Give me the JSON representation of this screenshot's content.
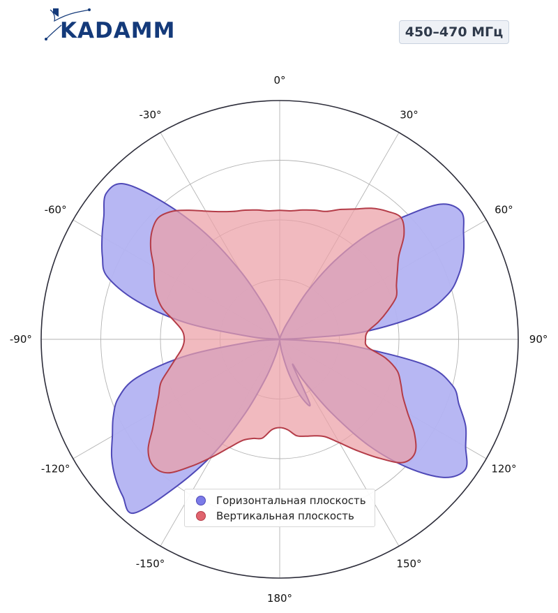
{
  "header": {
    "logo_text": "KADAMM",
    "frequency_label": "450–470 МГц"
  },
  "colors": {
    "horizontal_fill": "#b3b3f2",
    "horizontal_stroke": "#4f49b7",
    "vertical_fill": "#eba0a6",
    "vertical_stroke": "#b43c48",
    "legend_horizontal": "#7b7be8",
    "legend_vertical": "#e0646e",
    "logo": "#143a7a"
  },
  "chart_data": {
    "type": "polar",
    "angle_ticks": [
      0,
      30,
      60,
      90,
      120,
      150,
      180,
      -150,
      -120,
      -90,
      -60,
      -30
    ],
    "angle_tick_labels": [
      "0°",
      "30°",
      "60°",
      "90°",
      "120°",
      "150°",
      "180°",
      "-150°",
      "-120°",
      "-90°",
      "-60°",
      "-30°"
    ],
    "radial_grid": [
      0.25,
      0.5,
      0.75,
      1.0
    ],
    "radial_range": [
      0,
      1
    ],
    "grid": true,
    "legend_position": "bottom-center",
    "series": [
      {
        "name": "Горизонтальная плоскость",
        "color": "#7b7be8",
        "angles_deg": [
          0,
          5,
          10,
          15,
          20,
          25,
          30,
          35,
          40,
          45,
          50,
          55,
          60,
          65,
          70,
          75,
          80,
          85,
          87,
          90,
          93,
          95,
          100,
          105,
          110,
          115,
          120,
          125,
          130,
          135,
          140,
          145,
          150,
          153,
          155,
          160,
          165,
          170,
          175,
          180,
          185,
          190,
          195,
          200,
          205,
          210,
          215,
          220,
          225,
          230,
          235,
          240,
          245,
          250,
          255,
          260,
          265,
          270,
          275,
          280,
          285,
          290,
          295,
          300,
          305,
          310,
          315,
          320,
          325,
          330,
          335,
          340,
          345,
          350,
          355
        ],
        "values": [
          0.0,
          0.0,
          0.0,
          0.01,
          0.03,
          0.08,
          0.23,
          0.4,
          0.57,
          0.72,
          0.88,
          0.93,
          0.89,
          0.85,
          0.8,
          0.73,
          0.6,
          0.35,
          0.1,
          0.0,
          0.1,
          0.3,
          0.62,
          0.75,
          0.8,
          0.86,
          0.9,
          0.95,
          0.9,
          0.76,
          0.58,
          0.37,
          0.2,
          0.12,
          0.3,
          0.25,
          0.15,
          0.06,
          0.01,
          0.0,
          0.01,
          0.03,
          0.08,
          0.18,
          0.34,
          0.55,
          0.75,
          0.95,
          0.93,
          0.9,
          0.86,
          0.81,
          0.77,
          0.72,
          0.62,
          0.4,
          0.12,
          0.0,
          0.12,
          0.4,
          0.62,
          0.77,
          0.82,
          0.86,
          0.9,
          0.95,
          0.92,
          0.74,
          0.54,
          0.33,
          0.16,
          0.06,
          0.02,
          0.0,
          0.0
        ]
      },
      {
        "name": "Вертикальная плоскость",
        "color": "#e0646e",
        "angles_deg": [
          0,
          5,
          10,
          15,
          20,
          25,
          30,
          35,
          40,
          45,
          50,
          55,
          60,
          65,
          70,
          75,
          80,
          85,
          90,
          95,
          100,
          105,
          110,
          115,
          120,
          125,
          130,
          135,
          140,
          145,
          150,
          155,
          160,
          165,
          170,
          175,
          180,
          185,
          190,
          195,
          200,
          205,
          210,
          215,
          220,
          225,
          230,
          235,
          240,
          245,
          250,
          255,
          260,
          265,
          270,
          275,
          280,
          285,
          290,
          295,
          300,
          305,
          310,
          315,
          320,
          325,
          330,
          335,
          340,
          345,
          350,
          355
        ],
        "values": [
          0.54,
          0.54,
          0.55,
          0.56,
          0.57,
          0.6,
          0.63,
          0.67,
          0.7,
          0.72,
          0.68,
          0.61,
          0.57,
          0.54,
          0.52,
          0.47,
          0.42,
          0.37,
          0.36,
          0.37,
          0.45,
          0.51,
          0.54,
          0.57,
          0.62,
          0.69,
          0.74,
          0.73,
          0.65,
          0.57,
          0.5,
          0.45,
          0.43,
          0.42,
          0.41,
          0.38,
          0.37,
          0.38,
          0.42,
          0.43,
          0.45,
          0.5,
          0.57,
          0.65,
          0.73,
          0.75,
          0.72,
          0.65,
          0.6,
          0.56,
          0.53,
          0.48,
          0.44,
          0.41,
          0.4,
          0.41,
          0.45,
          0.51,
          0.55,
          0.58,
          0.61,
          0.66,
          0.7,
          0.72,
          0.7,
          0.66,
          0.62,
          0.59,
          0.57,
          0.56,
          0.55,
          0.54
        ]
      }
    ]
  }
}
